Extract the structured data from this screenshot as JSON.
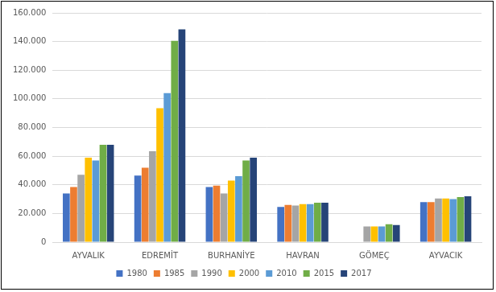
{
  "chart_data": {
    "type": "bar",
    "categories": [
      "AYVALIK",
      "EDREMİT",
      "BURHANİYE",
      "HAVRAN",
      "GÖMEÇ",
      "AYVACIK"
    ],
    "series": [
      {
        "name": "1980",
        "color": "#4472c4",
        "values": [
          34000,
          46500,
          38500,
          24500,
          null,
          28000
        ]
      },
      {
        "name": "1985",
        "color": "#ed7d31",
        "values": [
          38500,
          52000,
          39500,
          26000,
          null,
          28000
        ]
      },
      {
        "name": "1990",
        "color": "#a5a5a5",
        "values": [
          47000,
          63500,
          34000,
          25500,
          11000,
          30500
        ]
      },
      {
        "name": "2000",
        "color": "#ffc000",
        "values": [
          59000,
          93500,
          43000,
          26500,
          11000,
          30500
        ]
      },
      {
        "name": "2010",
        "color": "#5b9bd5",
        "values": [
          57000,
          104000,
          46000,
          26500,
          11000,
          30000
        ]
      },
      {
        "name": "2015",
        "color": "#70ad47",
        "values": [
          68000,
          140500,
          57000,
          27500,
          12500,
          31500
        ]
      },
      {
        "name": "2017",
        "color": "#264478",
        "values": [
          68000,
          148500,
          59000,
          27500,
          12000,
          32000
        ]
      }
    ],
    "ylim": [
      0,
      160000
    ],
    "yticks": [
      0,
      {
        "value": 20000,
        "label": "20.000"
      },
      {
        "value": 40000,
        "label": "40.000"
      },
      {
        "value": 60000,
        "label": "60.000"
      },
      {
        "value": 80000,
        "label": "80.000"
      },
      {
        "value": 100000,
        "label": "100.000"
      },
      {
        "value": 120000,
        "label": "120.000"
      },
      {
        "value": 140000,
        "label": "140.000"
      },
      {
        "value": 160000,
        "label": "160.000"
      }
    ],
    "grid": true,
    "legend": "bottom"
  }
}
